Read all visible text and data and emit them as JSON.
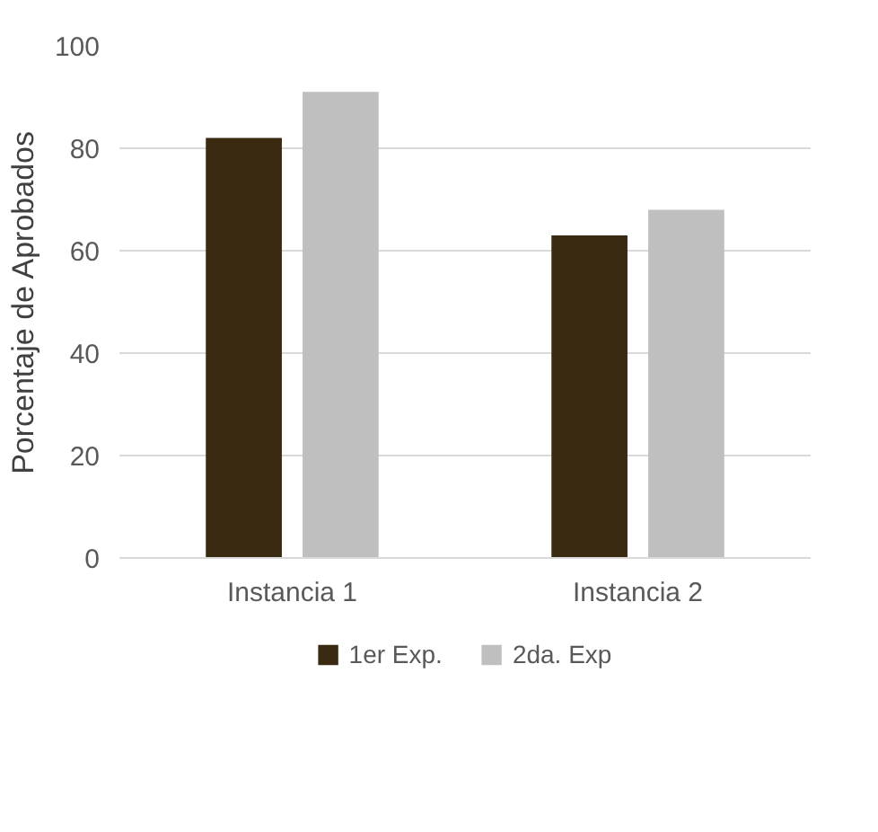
{
  "chart_data": {
    "type": "bar",
    "ylabel": "Porcentaje de Aprobados",
    "categories": [
      "Instancia 1",
      "Instancia 2"
    ],
    "series": [
      {
        "name": "1er Exp.",
        "color": "#3a2a12",
        "values": [
          82,
          63
        ]
      },
      {
        "name": "2da. Exp",
        "color": "#bfbfbf",
        "values": [
          91,
          68
        ]
      }
    ],
    "ylim": [
      0,
      100
    ],
    "yticks": [
      0,
      20,
      40,
      60,
      80,
      100
    ],
    "grid": "y",
    "legend": "bottom"
  }
}
